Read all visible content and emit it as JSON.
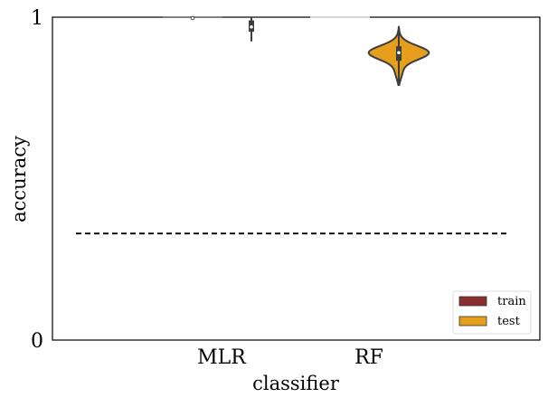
{
  "chart_data": {
    "type": "violin",
    "title": "",
    "xlabel": "classifier",
    "ylabel": "accuracy",
    "categories": [
      "MLR",
      "RF"
    ],
    "ylim": [
      0,
      1
    ],
    "yticks": [
      "0",
      "1"
    ],
    "grid": false,
    "legend_position": "bottom-right",
    "baseline": {
      "value": 0.33,
      "style": "dashed",
      "color": "#000000"
    },
    "series": [
      {
        "name": "train",
        "color": "#8b2e2e",
        "stats": [
          {
            "category": "MLR",
            "min": 0.995,
            "q1": 1.0,
            "median": 1.0,
            "q3": 1.0,
            "max": 1.0
          },
          {
            "category": "RF",
            "min": 1.0,
            "q1": 1.0,
            "median": 1.0,
            "q3": 1.0,
            "max": 1.0
          }
        ]
      },
      {
        "name": "test",
        "color": "#e69f1c",
        "stats": [
          {
            "category": "MLR",
            "min": 0.925,
            "q1": 0.955,
            "median": 0.97,
            "q3": 0.99,
            "max": 1.0
          },
          {
            "category": "RF",
            "min": 0.79,
            "q1": 0.865,
            "median": 0.89,
            "q3": 0.91,
            "max": 0.97
          }
        ]
      }
    ]
  }
}
